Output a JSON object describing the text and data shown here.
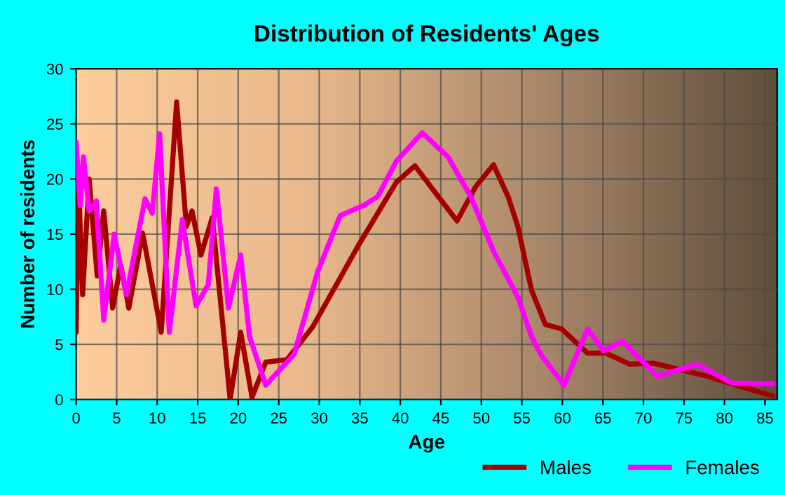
{
  "chart_data": {
    "type": "line",
    "title": "Distribution of Residents' Ages",
    "xlabel": "Age",
    "ylabel": "Number of residents",
    "xlim": [
      0,
      86.5
    ],
    "xticks": [
      0,
      5,
      10,
      15,
      20,
      25,
      30,
      35,
      40,
      45,
      50,
      55,
      60,
      65,
      70,
      75,
      80,
      85
    ],
    "ylim": [
      0,
      30
    ],
    "yticks": [
      0,
      5,
      10,
      15,
      20,
      25,
      30
    ],
    "grid": true,
    "legend": "bottom right",
    "marker": "none",
    "line_style": "solid",
    "series": [
      {
        "name": "Males",
        "color": "#a50000",
        "x": [
          0,
          0.3,
          0.8,
          1.6,
          2.6,
          3.4,
          4.5,
          5.5,
          6.5,
          8.2,
          10.5,
          12.4,
          13.6,
          14.3,
          15.4,
          16.8,
          19,
          20.3,
          21.7,
          23.4,
          26,
          29.2,
          35,
          39.5,
          41.8,
          44.7,
          47,
          49.3,
          51.5,
          53.3,
          54.5,
          56.2,
          57.9,
          59.9,
          63.1,
          65.4,
          68.3,
          71.2,
          77.4,
          86
        ],
        "values": [
          6.1,
          19.7,
          9.5,
          20,
          11.2,
          17.1,
          8.3,
          12.2,
          8.3,
          15.1,
          6.1,
          27,
          15.7,
          17.1,
          13.1,
          16.5,
          0,
          6.1,
          0.2,
          3.4,
          3.6,
          6.6,
          14.2,
          19.7,
          21.2,
          18.4,
          16.2,
          19.3,
          21.3,
          18.4,
          15.7,
          9.9,
          6.8,
          6.4,
          4.2,
          4.2,
          3.2,
          3.3,
          2.2,
          0.3
        ]
      },
      {
        "name": "Females",
        "color": "#ff00ff",
        "x": [
          0,
          0.5,
          0.9,
          1.6,
          2.5,
          3.4,
          4.7,
          6.2,
          8.5,
          9.4,
          10.3,
          11.5,
          13.1,
          14.8,
          16.3,
          17.3,
          18.8,
          20.3,
          21.4,
          23.4,
          26.9,
          29.8,
          32.6,
          35.5,
          37.2,
          39.5,
          42.7,
          45.9,
          48.7,
          51.6,
          54.5,
          56.2,
          57.4,
          60.2,
          63.1,
          65.1,
          67.4,
          71.7,
          76.6,
          80.9,
          86
        ],
        "values": [
          23.3,
          17.6,
          22,
          17.1,
          18,
          7.2,
          15,
          9.5,
          18.2,
          16.9,
          24.1,
          6.1,
          16.3,
          8.5,
          10.4,
          19.1,
          8.3,
          13.1,
          5.7,
          1.3,
          4.1,
          11.6,
          16.7,
          17.6,
          18.4,
          21.6,
          24.2,
          22,
          18.4,
          13.3,
          9.3,
          5.7,
          4,
          1.3,
          6.4,
          4.4,
          5.3,
          2.1,
          3.2,
          1.5,
          1.4
        ]
      }
    ]
  }
}
